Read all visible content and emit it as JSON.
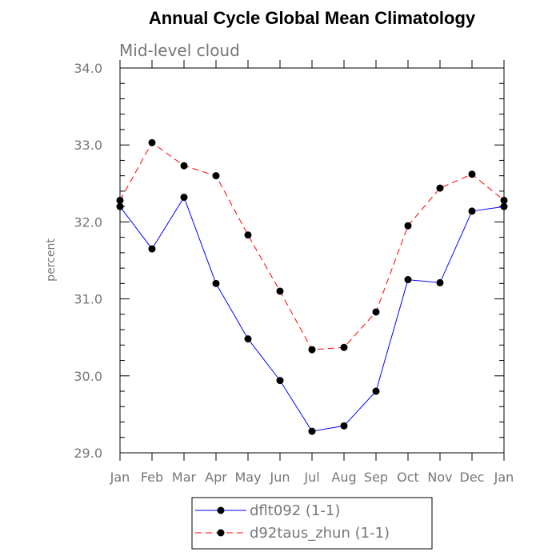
{
  "chart_data": {
    "type": "line",
    "title": "Annual Cycle Global Mean Climatology",
    "subtitle": "Mid-level cloud",
    "xlabel": "",
    "ylabel": "percent",
    "ylim": [
      29.0,
      34.0
    ],
    "yticks": [
      "29.0",
      "30.0",
      "31.0",
      "32.0",
      "33.0",
      "34.0"
    ],
    "categories": [
      "Jan",
      "Feb",
      "Mar",
      "Apr",
      "May",
      "Jun",
      "Jul",
      "Aug",
      "Sep",
      "Oct",
      "Nov",
      "Dec",
      "Jan"
    ],
    "series": [
      {
        "name": "dflt092 (1-1)",
        "color": "#0000ff",
        "dash": "solid",
        "marker": "filled-circle",
        "values": [
          32.2,
          31.65,
          32.32,
          31.2,
          30.48,
          29.94,
          29.28,
          29.35,
          29.8,
          31.25,
          31.21,
          32.14,
          32.2
        ]
      },
      {
        "name": "d92taus_zhun (1-1)",
        "color": "#ff0000",
        "dash": "dashed",
        "marker": "filled-circle",
        "values": [
          32.28,
          33.03,
          32.73,
          32.6,
          31.83,
          31.1,
          30.34,
          30.37,
          30.83,
          31.95,
          32.44,
          32.62,
          32.28
        ]
      }
    ],
    "legend_position": "bottom-center",
    "grid": false
  }
}
